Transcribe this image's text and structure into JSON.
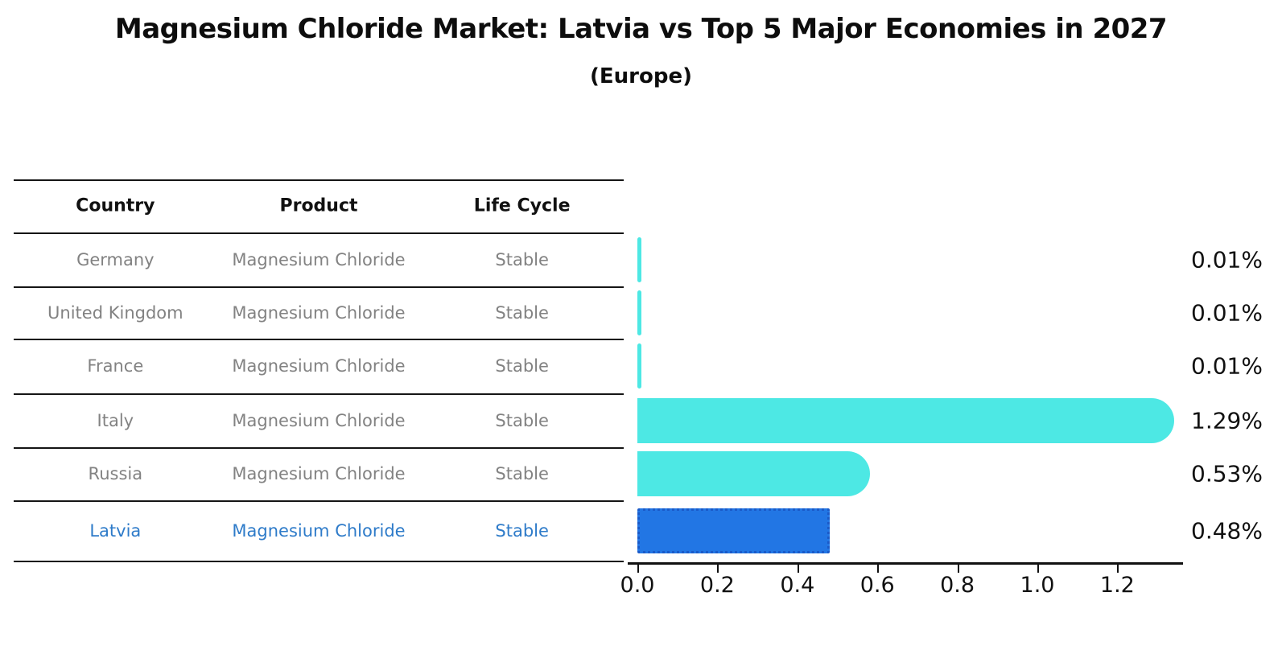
{
  "title": "Magnesium Chloride Market: Latvia vs Top 5 Major Economies in 2027",
  "subtitle": "(Europe)",
  "table": {
    "headers": [
      "Country",
      "Product",
      "Life Cycle"
    ],
    "rows": [
      {
        "country": "Germany",
        "product": "Magnesium Chloride",
        "life_cycle": "Stable",
        "highlighted": false
      },
      {
        "country": "United Kingdom",
        "product": "Magnesium Chloride",
        "life_cycle": "Stable",
        "highlighted": false
      },
      {
        "country": "France",
        "product": "Magnesium Chloride",
        "life_cycle": "Stable",
        "highlighted": false
      },
      {
        "country": "Italy",
        "product": "Magnesium Chloride",
        "life_cycle": "Stable",
        "highlighted": false
      },
      {
        "country": "Russia",
        "product": "Magnesium Chloride",
        "life_cycle": "Stable",
        "highlighted": false
      },
      {
        "country": "Latvia",
        "product": "Magnesium Chloride",
        "life_cycle": "Stable",
        "highlighted": true
      }
    ]
  },
  "chart_data": {
    "type": "bar",
    "orientation": "horizontal",
    "title": "Magnesium Chloride Market: Latvia vs Top 5 Major Economies in 2027",
    "subtitle": "(Europe)",
    "categories": [
      "Germany",
      "United Kingdom",
      "France",
      "Italy",
      "Russia",
      "Latvia"
    ],
    "values": [
      0.01,
      0.01,
      0.01,
      1.29,
      0.53,
      0.48
    ],
    "value_labels": [
      "0.01%",
      "0.01%",
      "0.01%",
      "1.29%",
      "0.53%",
      "0.48%"
    ],
    "unit": "%",
    "xlim": [
      0.0,
      1.365
    ],
    "xticks": [
      "0.0",
      "0.2",
      "0.4",
      "0.6",
      "0.8",
      "1.0",
      "1.2"
    ],
    "xtick_values": [
      0.0,
      0.2,
      0.4,
      0.6,
      0.8,
      1.0,
      1.2
    ],
    "grid": false,
    "legend": false,
    "highlight_index": 5,
    "colors": {
      "bar_default": "#4DE8E4",
      "bar_highlight": "#2276E4",
      "bar_highlight_border": "#1A5AC8",
      "row_text": "#828282",
      "highlight_text": "#2E7BC9",
      "header_text": "#111111"
    }
  }
}
